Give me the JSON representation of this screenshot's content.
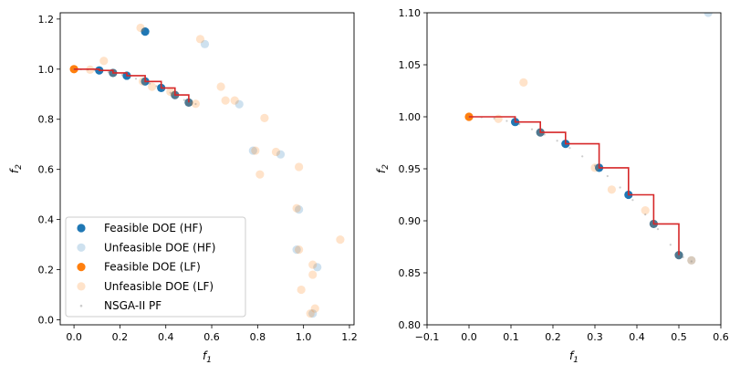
{
  "chart_data": [
    {
      "type": "scatter",
      "xlabel": "f1",
      "ylabel": "f2",
      "xlim": [
        -0.06,
        1.22
      ],
      "ylim": [
        -0.02,
        1.225
      ],
      "xticks": [
        0.0,
        0.2,
        0.4,
        0.6,
        0.8,
        1.0,
        1.2
      ],
      "xtick_labels": [
        "0.0",
        "0.2",
        "0.4",
        "0.6",
        "0.8",
        "1.0",
        "1.2"
      ],
      "yticks": [
        0.0,
        0.2,
        0.4,
        0.6,
        0.8,
        1.0,
        1.2
      ],
      "ytick_labels": [
        "0.0",
        "0.2",
        "0.4",
        "0.6",
        "0.8",
        "1.0",
        "1.2"
      ],
      "grid": false,
      "legend_position": "lower-left",
      "series": [
        {
          "name": "Feasible DOE (HF)",
          "color": "#1f77b4",
          "alpha": 1.0,
          "marker": "circle",
          "points": [
            [
              0.11,
              0.995
            ],
            [
              0.17,
              0.985
            ],
            [
              0.23,
              0.974
            ],
            [
              0.31,
              0.951
            ],
            [
              0.38,
              0.925
            ],
            [
              0.44,
              0.897
            ],
            [
              0.5,
              0.867
            ],
            [
              0.31,
              1.15
            ]
          ]
        },
        {
          "name": "Unfeasible DOE (HF)",
          "color": "#1f77b4",
          "alpha": 0.22,
          "marker": "circle",
          "points": [
            [
              0.57,
              1.1
            ],
            [
              0.72,
              0.86
            ],
            [
              0.78,
              0.675
            ],
            [
              0.9,
              0.66
            ],
            [
              0.98,
              0.44
            ],
            [
              0.97,
              0.28
            ],
            [
              1.06,
              0.21
            ],
            [
              1.04,
              0.025
            ]
          ]
        },
        {
          "name": "Feasible DOE (LF)",
          "color": "#ff7f0e",
          "alpha": 1.0,
          "marker": "circle",
          "points": [
            [
              0.0,
              1.0
            ]
          ]
        },
        {
          "name": "Unfeasible DOE (LF)",
          "color": "#ff7f0e",
          "alpha": 0.22,
          "marker": "circle",
          "points": [
            [
              0.07,
              0.998
            ],
            [
              0.13,
              1.033
            ],
            [
              0.17,
              0.985
            ],
            [
              0.3,
              0.951
            ],
            [
              0.34,
              0.93
            ],
            [
              0.42,
              0.91
            ],
            [
              0.44,
              0.897
            ],
            [
              0.5,
              0.867
            ],
            [
              0.53,
              0.862
            ],
            [
              0.29,
              1.165
            ],
            [
              0.55,
              1.12
            ],
            [
              0.64,
              0.93
            ],
            [
              0.66,
              0.875
            ],
            [
              0.7,
              0.875
            ],
            [
              0.79,
              0.675
            ],
            [
              0.81,
              0.58
            ],
            [
              0.83,
              0.805
            ],
            [
              0.88,
              0.67
            ],
            [
              0.97,
              0.445
            ],
            [
              0.98,
              0.61
            ],
            [
              0.99,
              0.12
            ],
            [
              1.04,
              0.18
            ],
            [
              1.04,
              0.22
            ],
            [
              1.05,
              0.045
            ],
            [
              1.03,
              0.025
            ],
            [
              1.16,
              0.32
            ],
            [
              0.98,
              0.28
            ]
          ]
        },
        {
          "name": "NSGA-II PF",
          "color": "#7f7f7f",
          "alpha": 0.4,
          "marker": "dot",
          "points": [
            [
              0.0,
              1.0
            ],
            [
              0.03,
              0.9995
            ],
            [
              0.06,
              0.9985
            ],
            [
              0.09,
              0.996
            ],
            [
              0.12,
              0.993
            ],
            [
              0.15,
              0.988
            ],
            [
              0.18,
              0.983
            ],
            [
              0.21,
              0.977
            ],
            [
              0.24,
              0.97
            ],
            [
              0.27,
              0.962
            ],
            [
              0.3,
              0.953
            ],
            [
              0.33,
              0.943
            ],
            [
              0.36,
              0.932
            ],
            [
              0.39,
              0.92
            ],
            [
              0.42,
              0.906
            ],
            [
              0.45,
              0.892
            ],
            [
              0.48,
              0.877
            ],
            [
              0.51,
              0.865
            ],
            [
              0.53,
              0.861
            ]
          ]
        }
      ],
      "step_line": {
        "color": "#d62728",
        "points": [
          [
            0.0,
            1.0
          ],
          [
            0.11,
            1.0
          ],
          [
            0.11,
            0.995
          ],
          [
            0.17,
            0.995
          ],
          [
            0.17,
            0.985
          ],
          [
            0.23,
            0.985
          ],
          [
            0.23,
            0.974
          ],
          [
            0.31,
            0.974
          ],
          [
            0.31,
            0.951
          ],
          [
            0.38,
            0.951
          ],
          [
            0.38,
            0.925
          ],
          [
            0.44,
            0.925
          ],
          [
            0.44,
            0.897
          ],
          [
            0.5,
            0.897
          ],
          [
            0.5,
            0.867
          ]
        ]
      }
    },
    {
      "type": "scatter",
      "xlabel": "f1",
      "ylabel": "f2",
      "xlim": [
        -0.1,
        0.6
      ],
      "ylim": [
        0.8,
        1.1
      ],
      "xticks": [
        -0.1,
        0.0,
        0.1,
        0.2,
        0.3,
        0.4,
        0.5,
        0.6
      ],
      "xtick_labels": [
        "−0.1",
        "0.0",
        "0.1",
        "0.2",
        "0.3",
        "0.4",
        "0.5",
        "0.6"
      ],
      "yticks": [
        0.8,
        0.85,
        0.9,
        0.95,
        1.0,
        1.05,
        1.1
      ],
      "ytick_labels": [
        "0.80",
        "0.85",
        "0.90",
        "0.95",
        "1.00",
        "1.05",
        "1.10"
      ],
      "grid": false,
      "series": [
        {
          "name": "Feasible DOE (HF)",
          "color": "#1f77b4",
          "alpha": 1.0,
          "marker": "circle",
          "points": [
            [
              0.11,
              0.995
            ],
            [
              0.17,
              0.985
            ],
            [
              0.23,
              0.974
            ],
            [
              0.31,
              0.951
            ],
            [
              0.38,
              0.925
            ],
            [
              0.44,
              0.897
            ],
            [
              0.5,
              0.867
            ]
          ]
        },
        {
          "name": "Unfeasible DOE (HF)",
          "color": "#1f77b4",
          "alpha": 0.22,
          "marker": "circle",
          "points": [
            [
              0.57,
              1.1
            ],
            [
              0.53,
              0.862
            ]
          ]
        },
        {
          "name": "Feasible DOE (LF)",
          "color": "#ff7f0e",
          "alpha": 1.0,
          "marker": "circle",
          "points": [
            [
              0.0,
              1.0
            ]
          ]
        },
        {
          "name": "Unfeasible DOE (LF)",
          "color": "#ff7f0e",
          "alpha": 0.22,
          "marker": "circle",
          "points": [
            [
              0.07,
              0.998
            ],
            [
              0.13,
              1.033
            ],
            [
              0.17,
              0.985
            ],
            [
              0.3,
              0.951
            ],
            [
              0.34,
              0.93
            ],
            [
              0.42,
              0.91
            ],
            [
              0.44,
              0.897
            ],
            [
              0.5,
              0.867
            ],
            [
              0.53,
              0.862
            ]
          ]
        },
        {
          "name": "NSGA-II PF",
          "color": "#7f7f7f",
          "alpha": 0.4,
          "marker": "dot",
          "points": [
            [
              0.0,
              1.0
            ],
            [
              0.03,
              0.9995
            ],
            [
              0.06,
              0.9985
            ],
            [
              0.09,
              0.996
            ],
            [
              0.12,
              0.993
            ],
            [
              0.15,
              0.988
            ],
            [
              0.18,
              0.983
            ],
            [
              0.21,
              0.977
            ],
            [
              0.24,
              0.97
            ],
            [
              0.27,
              0.962
            ],
            [
              0.3,
              0.953
            ],
            [
              0.33,
              0.943
            ],
            [
              0.36,
              0.932
            ],
            [
              0.39,
              0.92
            ],
            [
              0.42,
              0.906
            ],
            [
              0.45,
              0.892
            ],
            [
              0.48,
              0.877
            ],
            [
              0.51,
              0.865
            ],
            [
              0.53,
              0.861
            ]
          ]
        }
      ],
      "step_line": {
        "color": "#d62728",
        "points": [
          [
            0.0,
            1.0
          ],
          [
            0.11,
            1.0
          ],
          [
            0.11,
            0.995
          ],
          [
            0.17,
            0.995
          ],
          [
            0.17,
            0.985
          ],
          [
            0.23,
            0.985
          ],
          [
            0.23,
            0.974
          ],
          [
            0.31,
            0.974
          ],
          [
            0.31,
            0.951
          ],
          [
            0.38,
            0.951
          ],
          [
            0.38,
            0.925
          ],
          [
            0.44,
            0.925
          ],
          [
            0.44,
            0.897
          ],
          [
            0.5,
            0.897
          ],
          [
            0.5,
            0.867
          ]
        ]
      }
    }
  ],
  "legend": {
    "items": [
      {
        "label": "Feasible DOE (HF)",
        "color": "#1f77b4",
        "alpha": 1.0,
        "marker": "circle"
      },
      {
        "label": "Unfeasible DOE (HF)",
        "color": "#1f77b4",
        "alpha": 0.22,
        "marker": "circle"
      },
      {
        "label": "Feasible DOE (LF)",
        "color": "#ff7f0e",
        "alpha": 1.0,
        "marker": "circle"
      },
      {
        "label": "Unfeasible DOE (LF)",
        "color": "#ff7f0e",
        "alpha": 0.22,
        "marker": "circle"
      },
      {
        "label": "NSGA-II PF",
        "color": "#7f7f7f",
        "alpha": 0.4,
        "marker": "dot"
      }
    ]
  }
}
